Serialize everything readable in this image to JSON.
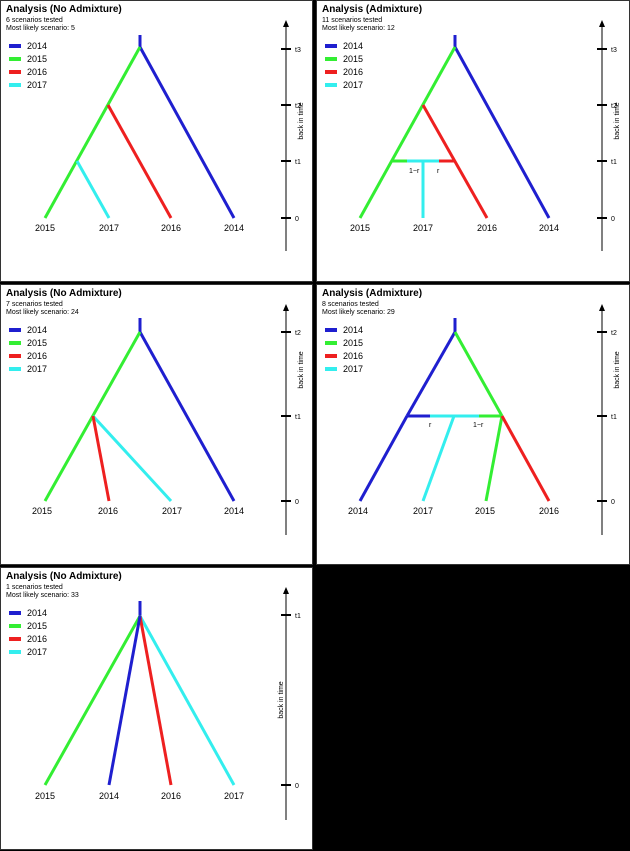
{
  "colors": {
    "2014": "#1f1fcf",
    "2015": "#33ee33",
    "2016": "#ee2020",
    "2017": "#33eeee",
    "axis": "#000000"
  },
  "axis_label": "back in time",
  "panels": [
    {
      "title": "Analysis (No Admixture)",
      "scenarios": "6 scenarios tested",
      "likely": "Most likely scenario: 5",
      "legend": [
        "2014",
        "2015",
        "2016",
        "2017"
      ],
      "time_labels": [
        "t3",
        "t2",
        "t1",
        "0"
      ],
      "leaves": [
        "2015",
        "2017",
        "2016",
        "2014"
      ]
    },
    {
      "title": "Analysis (Admixture)",
      "scenarios": "11 scenarios tested",
      "likely": "Most likely scenario: 12",
      "legend": [
        "2014",
        "2015",
        "2016",
        "2017"
      ],
      "time_labels": [
        "t3",
        "t2",
        "t1",
        "0"
      ],
      "leaves": [
        "2015",
        "2017",
        "2016",
        "2014"
      ],
      "admix_labels": [
        "1−r",
        "r"
      ]
    },
    {
      "title": "Analysis (No Admixture)",
      "scenarios": "7 scenarios tested",
      "likely": "Most likely scenario: 24",
      "legend": [
        "2014",
        "2015",
        "2016",
        "2017"
      ],
      "time_labels": [
        "t2",
        "t1",
        "0"
      ],
      "leaves": [
        "2015",
        "2016",
        "2017",
        "2014"
      ]
    },
    {
      "title": "Analysis (Admixture)",
      "scenarios": "8 scenarios tested",
      "likely": "Most likely scenario: 29",
      "legend": [
        "2014",
        "2015",
        "2016",
        "2017"
      ],
      "time_labels": [
        "t2",
        "t1",
        "0"
      ],
      "leaves": [
        "2014",
        "2017",
        "2015",
        "2016"
      ],
      "admix_labels": [
        "r",
        "1−r"
      ]
    },
    {
      "title": "Analysis (No Admixture)",
      "scenarios": "1 scenarios tested",
      "likely": "Most likely scenario: 33",
      "legend": [
        "2014",
        "2015",
        "2016",
        "2017"
      ],
      "time_labels": [
        "t1",
        "0"
      ],
      "leaves": [
        "2015",
        "2014",
        "2016",
        "2017"
      ]
    }
  ]
}
